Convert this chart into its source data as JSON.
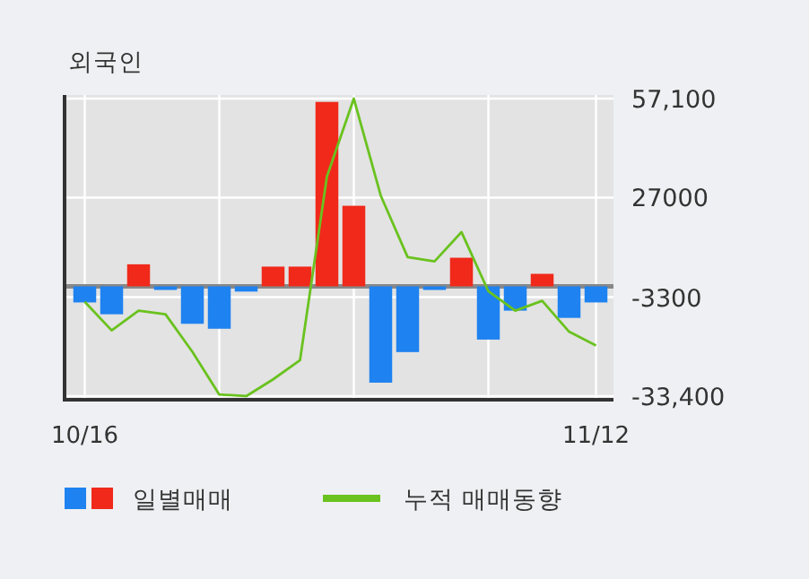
{
  "chart_data": {
    "type": "bar",
    "title": "외국인",
    "categories": [
      "10/16",
      null,
      null,
      null,
      null,
      null,
      null,
      null,
      null,
      null,
      null,
      null,
      null,
      null,
      null,
      null,
      null,
      null,
      null,
      "11/12"
    ],
    "series": [
      {
        "name": "일별매매",
        "colors": [
          "#1e82f0",
          "#1e82f0",
          "#f0291a",
          "#1e82f0",
          "#1e82f0",
          "#1e82f0",
          "#1e82f0",
          "#f0291a",
          "#f0291a",
          "#f0291a",
          "#f0291a",
          "#1e82f0",
          "#1e82f0",
          "#1e82f0",
          "#f0291a",
          "#1e82f0",
          "#1e82f0",
          "#f0291a",
          "#1e82f0",
          "#1e82f0"
        ],
        "values": [
          -4900,
          -8500,
          6700,
          -1100,
          -11400,
          -12900,
          -1600,
          6000,
          6000,
          56100,
          24500,
          -29300,
          -20000,
          -1100,
          8700,
          -16200,
          -7400,
          3800,
          -9600,
          -4900
        ]
      },
      {
        "name": "누적 매매동향",
        "type": "line",
        "color": "#6ac21f",
        "values": [
          -4700,
          -13400,
          -7400,
          -8500,
          -19900,
          -32900,
          -33400,
          -28300,
          -22500,
          33400,
          57100,
          27600,
          8900,
          7600,
          16500,
          -1500,
          -7400,
          -4400,
          -13800,
          -18000
        ]
      }
    ],
    "ylim": [
      -34500,
      58200
    ],
    "yticks": [
      {
        "value": 57100,
        "label": "57,100"
      },
      27000,
      {
        "value": -3300,
        "label": "-3300"
      },
      {
        "value": -33400,
        "label": "-33,400"
      }
    ],
    "ref_lines": [
      {
        "axis": "y",
        "value": 0,
        "color": "#888888"
      }
    ],
    "grid": true,
    "legend": "bottom"
  }
}
